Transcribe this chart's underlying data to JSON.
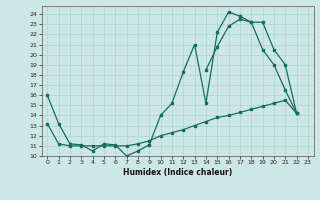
{
  "xlabel": "Humidex (Indice chaleur)",
  "bg_color": "#cce8e4",
  "line_color": "#1a6b5a",
  "grid_color": "#aad4cc",
  "xlim": [
    -0.5,
    23.5
  ],
  "ylim": [
    10,
    24.8
  ],
  "xticks": [
    0,
    1,
    2,
    3,
    4,
    5,
    6,
    7,
    8,
    9,
    10,
    11,
    12,
    13,
    14,
    15,
    16,
    17,
    18,
    19,
    20,
    21,
    22,
    23
  ],
  "yticks": [
    10,
    11,
    12,
    13,
    14,
    15,
    16,
    17,
    18,
    19,
    20,
    21,
    22,
    23,
    24
  ],
  "line1_x": [
    0,
    1,
    2,
    3,
    4,
    5,
    6,
    7,
    8,
    9,
    10,
    11,
    12,
    13,
    14,
    15,
    16,
    17,
    18,
    19,
    20,
    21,
    22
  ],
  "line1_y": [
    16.0,
    13.2,
    11.2,
    11.1,
    10.5,
    11.2,
    11.1,
    10.0,
    10.5,
    11.1,
    14.0,
    15.2,
    18.3,
    21.0,
    15.2,
    22.2,
    24.2,
    23.8,
    23.2,
    20.5,
    19.0,
    16.5,
    14.2
  ],
  "line2_x": [
    14,
    15,
    16,
    17,
    18,
    19,
    20,
    21,
    22
  ],
  "line2_y": [
    18.5,
    20.8,
    22.8,
    23.5,
    23.2,
    23.2,
    20.5,
    19.0,
    14.2
  ],
  "line3_x": [
    0,
    1,
    2,
    3,
    4,
    5,
    6,
    7,
    8,
    9,
    10,
    11,
    12,
    13,
    14,
    15,
    16,
    17,
    18,
    19,
    20,
    21,
    22
  ],
  "line3_y": [
    13.2,
    11.2,
    11.0,
    11.0,
    11.0,
    11.0,
    11.0,
    11.0,
    11.2,
    11.5,
    12.0,
    12.3,
    12.6,
    13.0,
    13.4,
    13.8,
    14.0,
    14.3,
    14.6,
    14.9,
    15.2,
    15.5,
    14.2
  ]
}
